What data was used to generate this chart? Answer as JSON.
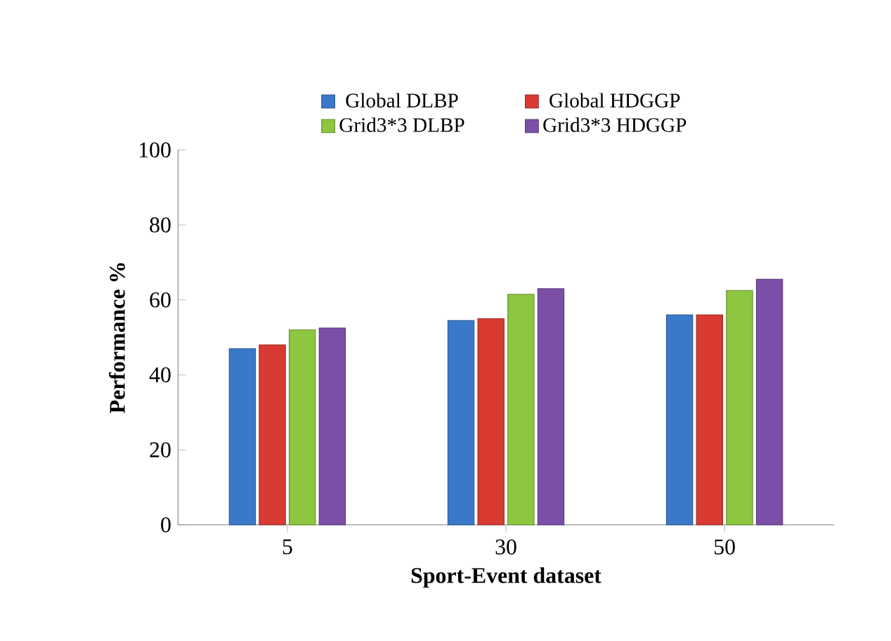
{
  "chart_data": {
    "type": "bar",
    "xlabel": "Sport-Event dataset",
    "ylabel": "Performance %",
    "categories": [
      "5",
      "30",
      "50"
    ],
    "series": [
      {
        "name": "Global DLBP",
        "color": "#3a78c9",
        "values": [
          47,
          54.5,
          56
        ]
      },
      {
        "name": "Global HDGGP",
        "color": "#d93a32",
        "values": [
          48,
          55,
          56
        ]
      },
      {
        "name": "Grid3*3 DLBP",
        "color": "#8dc63f",
        "values": [
          52,
          61.5,
          62.5
        ]
      },
      {
        "name": "Grid3*3 HDGGP",
        "color": "#7b4fa8",
        "values": [
          52.5,
          63,
          65.5
        ]
      }
    ],
    "ylim": [
      0,
      100
    ],
    "yticks": [
      0,
      20,
      40,
      60,
      80,
      100
    ],
    "grid": false,
    "legend": "top"
  }
}
